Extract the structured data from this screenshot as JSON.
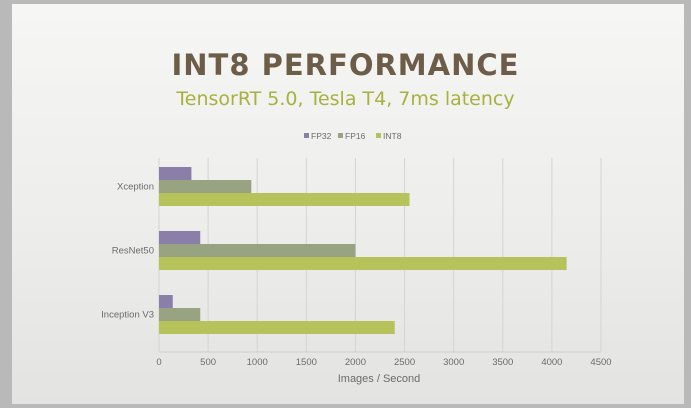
{
  "slide": {
    "title": "INT8 PERFORMANCE",
    "subtitle": "TensorRT 5.0, Tesla T4, 7ms latency"
  },
  "colors": {
    "fp32": "#8a7fa8",
    "fp16": "#98a382",
    "int8": "#b6c25a",
    "grid": "#d4d4d2"
  },
  "chart_data": {
    "type": "bar",
    "orientation": "horizontal",
    "categories": [
      "Xception",
      "ResNet50",
      "Inception V3"
    ],
    "series": [
      {
        "name": "FP32",
        "key": "fp32",
        "values": [
          330,
          420,
          140
        ]
      },
      {
        "name": "FP16",
        "key": "fp16",
        "values": [
          940,
          2000,
          420
        ]
      },
      {
        "name": "INT8",
        "key": "int8",
        "values": [
          2550,
          4150,
          2400
        ]
      }
    ],
    "xlabel": "Images / Second",
    "ylabel": "",
    "xlim": [
      0,
      4500
    ],
    "xticks": [
      0,
      500,
      1000,
      1500,
      2000,
      2500,
      3000,
      3500,
      4000,
      4500
    ],
    "grid": "vertical",
    "legend": "top-center"
  }
}
